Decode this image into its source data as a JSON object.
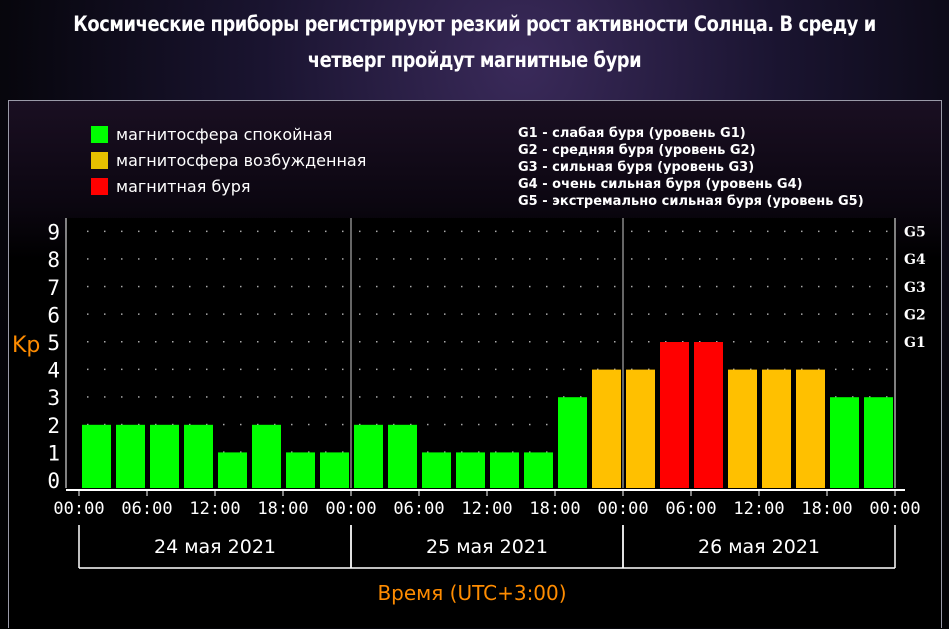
{
  "title": "Космические приборы регистрируют резкий рост активности Солнца. В среду и четверг пройдут магнитные бури",
  "chart_data": {
    "type": "bar",
    "ylabel": "Kp",
    "xlabel": "Время (UTC+3:00)",
    "ylim": [
      0,
      9
    ],
    "yticks": [
      "0",
      "1",
      "2",
      "3",
      "4",
      "5",
      "6",
      "7",
      "8",
      "9"
    ],
    "g_levels": [
      {
        "label": "G1",
        "kp": 5
      },
      {
        "label": "G2",
        "kp": 6
      },
      {
        "label": "G3",
        "kp": 7
      },
      {
        "label": "G4",
        "kp": 8
      },
      {
        "label": "G5",
        "kp": 9
      }
    ],
    "time_ticks": [
      "00:00",
      "06:00",
      "12:00",
      "18:00",
      "00:00",
      "06:00",
      "12:00",
      "18:00",
      "00:00",
      "06:00",
      "12:00",
      "18:00",
      "00:00"
    ],
    "days": [
      "24 мая 2021",
      "25 мая 2021",
      "26 мая 2021"
    ],
    "values": [
      2,
      2,
      2,
      2,
      1,
      2,
      1,
      1,
      2,
      2,
      1,
      1,
      1,
      1,
      3,
      4,
      4,
      5,
      5,
      4,
      4,
      4,
      3,
      3
    ],
    "colors": {
      "quiet": "#00ff00",
      "excited": "#ffc000",
      "storm": "#ff0000",
      "axis": "#ffffff",
      "label": "#ff8c00"
    },
    "legend": [
      {
        "label": "магнитосфера спокойная",
        "color": "#00ff00"
      },
      {
        "label": "магнитосфера возбужденная",
        "color": "#e6c000"
      },
      {
        "label": "магнитная буря",
        "color": "#ff0000"
      }
    ],
    "g_legend": [
      "G1 - слабая буря (уровень G1)",
      "G2 - средняя буря (уровень G2)",
      "G3 - сильная буря (уровень G3)",
      "G4 - очень сильная буря (уровень G4)",
      "G5 - экстремально сильная буря (уровень G5)"
    ],
    "grid": true
  }
}
